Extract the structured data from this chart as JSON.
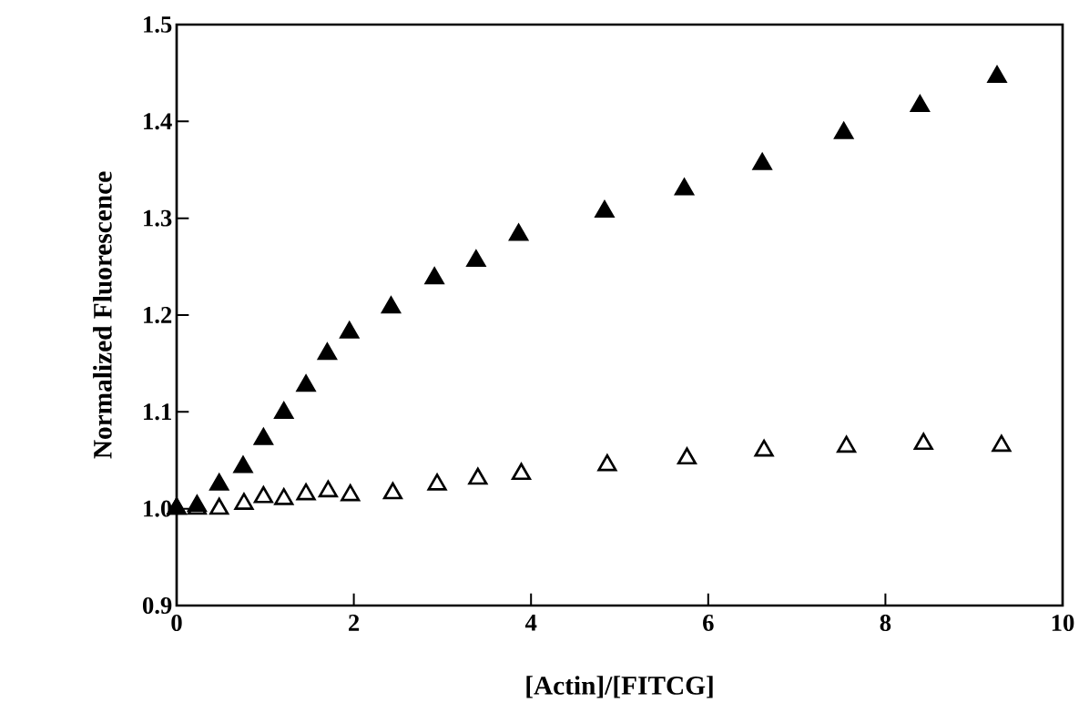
{
  "chart_data": {
    "type": "scatter",
    "xlabel": "[Actin]/[FITCG]",
    "ylabel": "Normalized   Fluorescence",
    "xlim": [
      0,
      10
    ],
    "xticks": [
      0,
      2,
      4,
      6,
      8,
      10
    ],
    "ylim": [
      0.9,
      1.5
    ],
    "yticks": [
      {
        "value": 0.9,
        "label": "0.9"
      },
      {
        "value": 1.0,
        "label": "1.0"
      },
      {
        "value": 1.1,
        "label": "1.1"
      },
      {
        "value": 1.2,
        "label": "1.2"
      },
      {
        "value": 1.3,
        "label": "1.3"
      },
      {
        "value": 1.4,
        "label": "1.4"
      },
      {
        "value": 1.5,
        "label": "1.5"
      }
    ],
    "marker": "triangle",
    "grid": false,
    "series": [
      {
        "color": "#ffffff",
        "x": [
          0,
          0.23,
          0.48,
          0.76,
          0.98,
          1.21,
          1.46,
          1.71,
          1.96,
          2.44,
          2.94,
          3.4,
          3.89,
          4.86,
          5.76,
          6.63,
          7.56,
          8.43,
          9.31
        ],
        "values": [
          1.0,
          1.0,
          1.0,
          1.005,
          1.012,
          1.01,
          1.015,
          1.018,
          1.014,
          1.016,
          1.025,
          1.031,
          1.036,
          1.045,
          1.052,
          1.06,
          1.064,
          1.067,
          1.065
        ]
      },
      {
        "color": "#000000",
        "x": [
          0,
          0.23,
          0.48,
          0.75,
          0.98,
          1.21,
          1.46,
          1.7,
          1.95,
          2.42,
          2.91,
          3.38,
          3.86,
          4.83,
          5.73,
          6.61,
          7.53,
          8.39,
          9.26
        ],
        "values": [
          1.0,
          1.003,
          1.025,
          1.043,
          1.072,
          1.099,
          1.127,
          1.16,
          1.182,
          1.208,
          1.238,
          1.256,
          1.283,
          1.307,
          1.33,
          1.356,
          1.388,
          1.416,
          1.446
        ]
      }
    ]
  }
}
